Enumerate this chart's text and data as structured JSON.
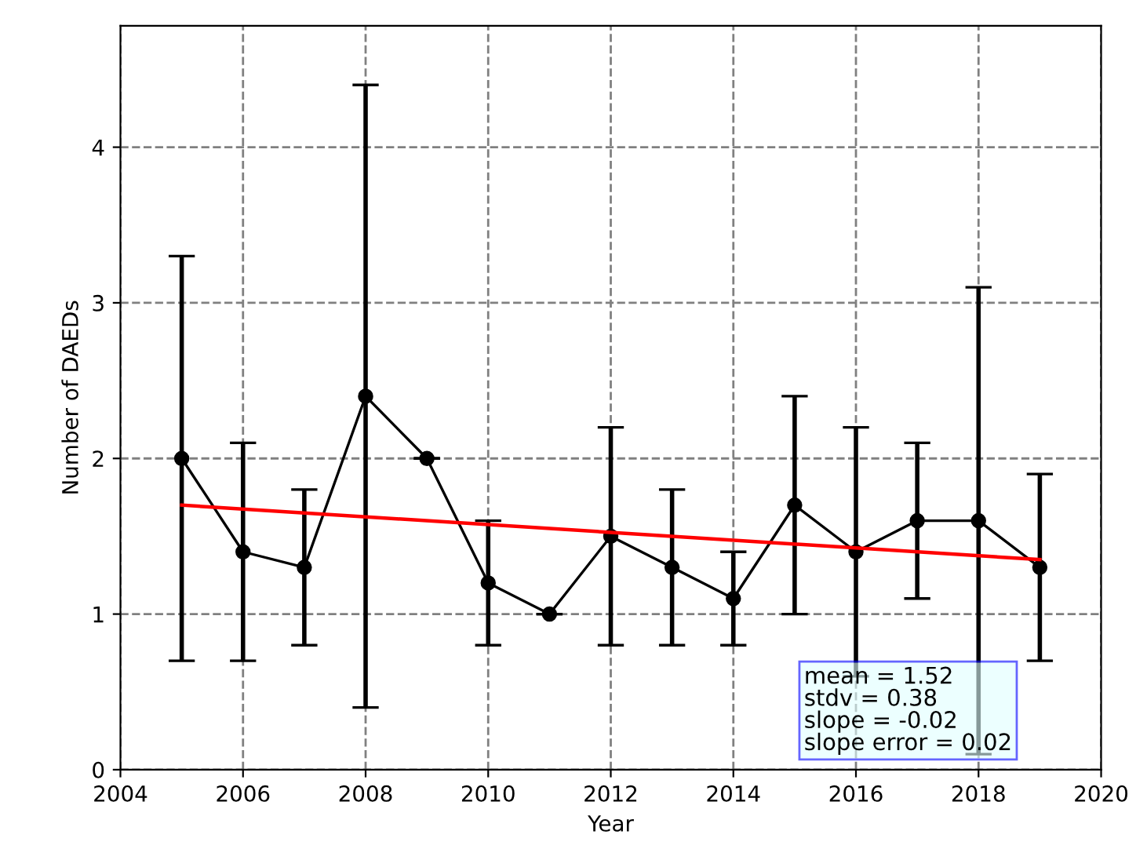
{
  "chart_data": {
    "type": "line",
    "xlabel": "Year",
    "ylabel": "Number of DAEDs",
    "x": [
      2005,
      2006,
      2007,
      2008,
      2009,
      2010,
      2011,
      2012,
      2013,
      2014,
      2015,
      2016,
      2017,
      2018,
      2019
    ],
    "series": [
      {
        "color": "#000000",
        "marker": "circle",
        "values": [
          2.0,
          1.4,
          1.3,
          2.4,
          2.0,
          1.2,
          1.0,
          1.5,
          1.3,
          1.1,
          1.7,
          1.4,
          1.6,
          1.6,
          1.3
        ],
        "errors": [
          [
            0.7,
            3.3
          ],
          [
            0.7,
            2.1
          ],
          [
            0.8,
            1.8
          ],
          [
            0.4,
            4.4
          ],
          [
            2.0,
            2.0
          ],
          [
            0.8,
            1.6
          ],
          [
            1.0,
            1.0
          ],
          [
            0.8,
            2.2
          ],
          [
            0.8,
            1.8
          ],
          [
            0.8,
            1.4
          ],
          [
            1.0,
            2.4
          ],
          [
            0.6,
            2.2
          ],
          [
            1.1,
            2.1
          ],
          [
            0.1,
            3.1
          ],
          [
            0.7,
            1.9
          ]
        ]
      },
      {
        "color": "#ff0000",
        "marker": "none",
        "x": [
          2005,
          2019
        ],
        "values": [
          1.7,
          1.35
        ]
      }
    ],
    "xlim": [
      2004,
      2020
    ],
    "xticks": [
      2004,
      2006,
      2008,
      2010,
      2012,
      2014,
      2016,
      2018,
      2020
    ],
    "ylim": [
      0,
      4.78
    ],
    "yticks": [
      0,
      1,
      2,
      3,
      4
    ],
    "grid": true,
    "annotations": [
      "mean = 1.52",
      "stdv = 0.38",
      "slope = -0.02",
      "slope error = 0.02"
    ]
  }
}
